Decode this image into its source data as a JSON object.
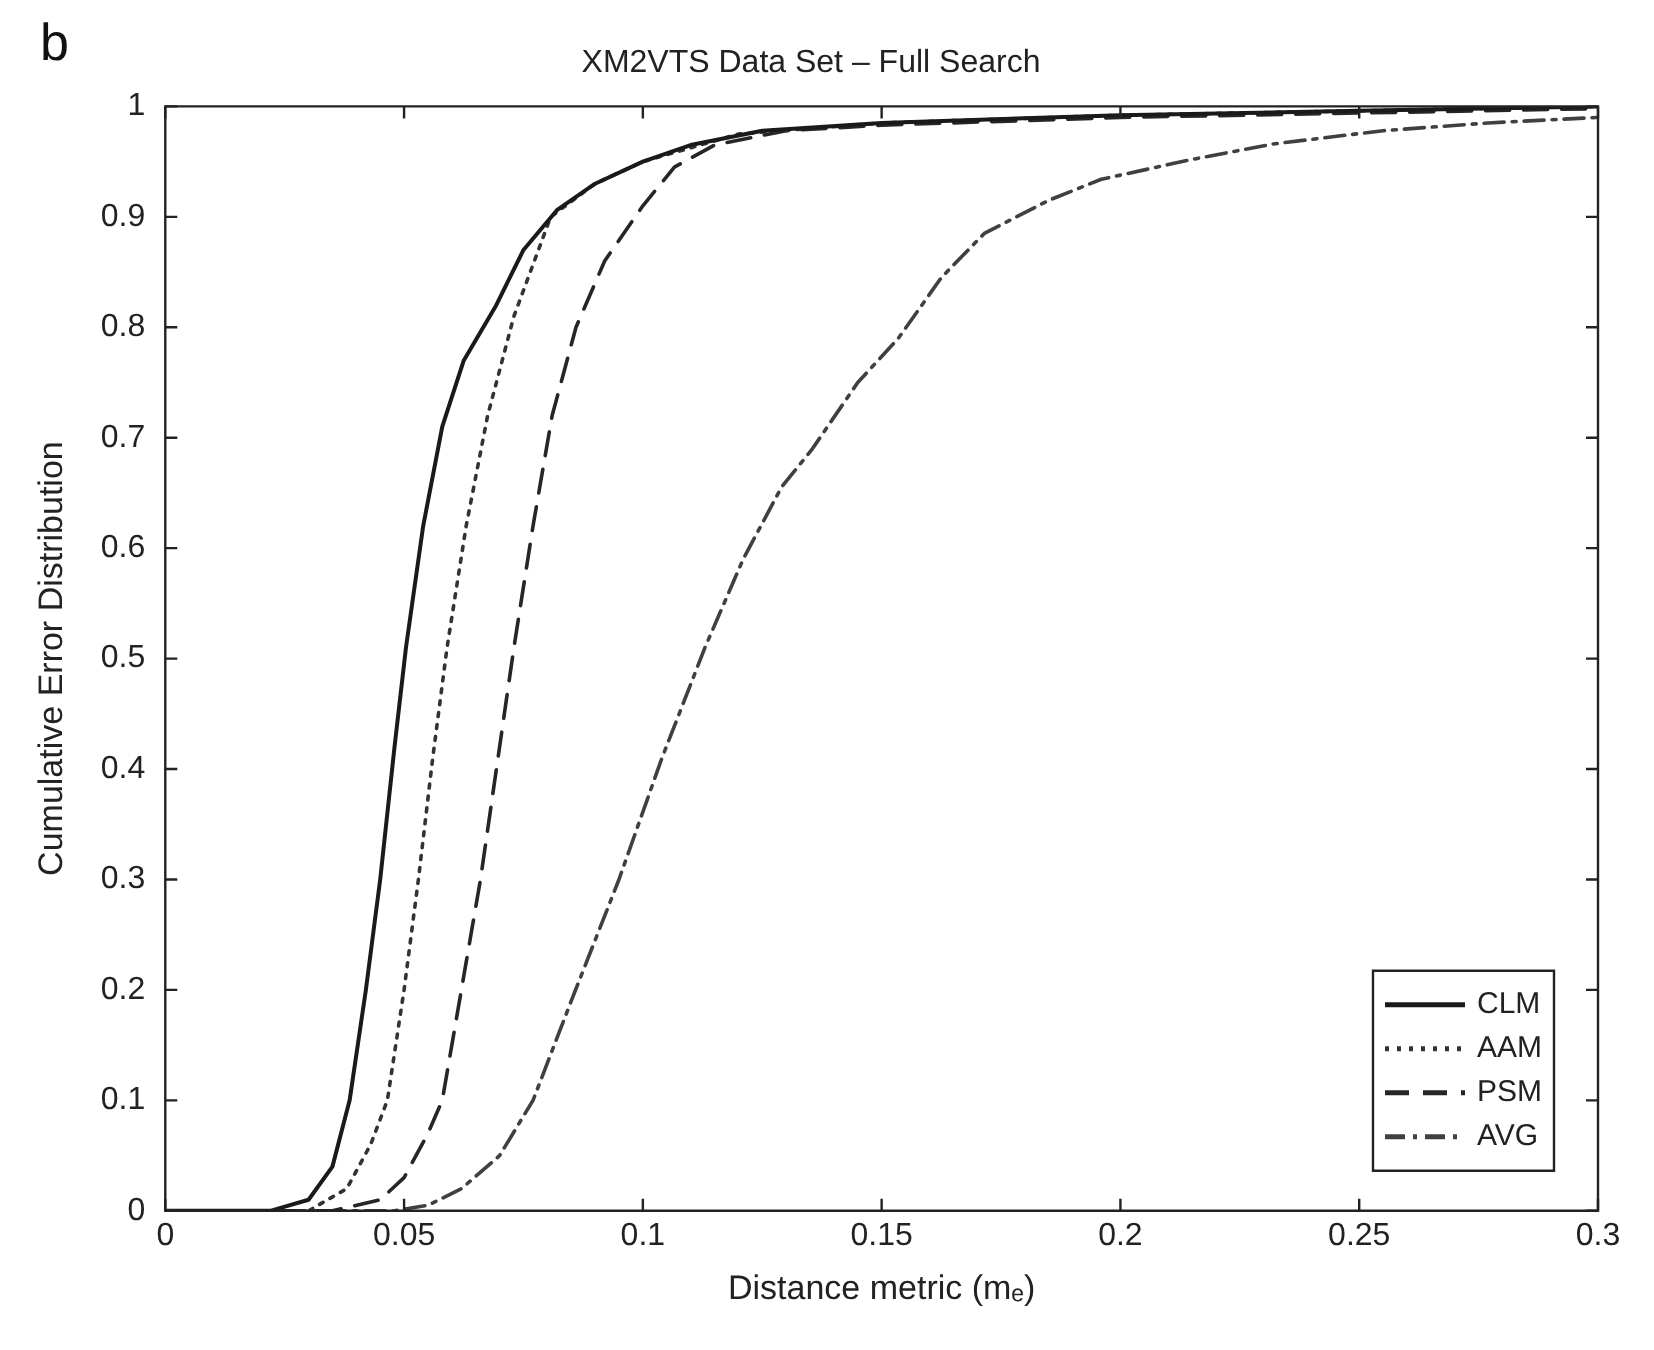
{
  "chart_data": {
    "type": "line",
    "title": "XM2VTS Data Set – Full Search",
    "xlabel": "Distance metric (mₑ)",
    "ylabel": "Cumulative Error Distribution",
    "annotations": [
      "b"
    ],
    "xlim": [
      0,
      0.3
    ],
    "xticks": [
      0,
      0.05,
      0.1,
      0.15,
      0.2,
      0.25,
      0.3
    ],
    "ylim": [
      0,
      1
    ],
    "yticks": [
      0,
      0.1,
      0.2,
      0.3,
      0.4,
      0.5,
      0.6,
      0.7,
      0.8,
      0.9,
      1
    ],
    "grid": false,
    "legend": "bottom right",
    "marker": "none",
    "series": [
      {
        "name": "CLM",
        "color": "#1a1a1a",
        "line_style": "solid",
        "x": [
          0,
          0.022,
          0.03,
          0.035,
          0.0386,
          0.042,
          0.045,
          0.048,
          0.0504,
          0.054,
          0.058,
          0.0625,
          0.0693,
          0.075,
          0.082,
          0.09,
          0.1,
          0.11,
          0.125,
          0.15,
          0.2,
          0.25,
          0.3
        ],
        "values": [
          0,
          0,
          0.01,
          0.04,
          0.1,
          0.2,
          0.3,
          0.42,
          0.51,
          0.62,
          0.71,
          0.77,
          0.82,
          0.87,
          0.906,
          0.93,
          0.95,
          0.965,
          0.978,
          0.985,
          0.992,
          0.996,
          1
        ]
      },
      {
        "name": "AAM",
        "color": "#333333",
        "line_style": "dotted",
        "x": [
          0,
          0.03,
          0.038,
          0.043,
          0.0465,
          0.05,
          0.053,
          0.056,
          0.059,
          0.063,
          0.0675,
          0.073,
          0.0807,
          0.09,
          0.1,
          0.12,
          0.15,
          0.2,
          0.3
        ],
        "values": [
          0,
          0,
          0.02,
          0.06,
          0.1,
          0.2,
          0.3,
          0.41,
          0.51,
          0.62,
          0.72,
          0.81,
          0.9,
          0.93,
          0.95,
          0.975,
          0.985,
          0.992,
          1
        ]
      },
      {
        "name": "PSM",
        "color": "#262626",
        "line_style": "dashed",
        "x": [
          0,
          0.035,
          0.045,
          0.05,
          0.055,
          0.058,
          0.062,
          0.066,
          0.07,
          0.073,
          0.077,
          0.081,
          0.086,
          0.092,
          0.1,
          0.1066,
          0.115,
          0.13,
          0.15,
          0.2,
          0.3
        ],
        "values": [
          0,
          0,
          0.01,
          0.03,
          0.07,
          0.1,
          0.2,
          0.3,
          0.42,
          0.51,
          0.62,
          0.72,
          0.8,
          0.86,
          0.91,
          0.945,
          0.965,
          0.978,
          0.983,
          0.99,
          0.998
        ]
      },
      {
        "name": "AVG",
        "color": "#404040",
        "line_style": "dashdot",
        "x": [
          0,
          0.048,
          0.055,
          0.062,
          0.07,
          0.077,
          0.085,
          0.095,
          0.104,
          0.113,
          0.121,
          0.129,
          0.1355,
          0.145,
          0.1535,
          0.1625,
          0.1715,
          0.185,
          0.196,
          0.215,
          0.232,
          0.255,
          0.277,
          0.3
        ],
        "values": [
          0,
          0,
          0.005,
          0.02,
          0.05,
          0.1,
          0.19,
          0.3,
          0.41,
          0.51,
          0.59,
          0.655,
          0.69,
          0.75,
          0.79,
          0.845,
          0.885,
          0.915,
          0.934,
          0.952,
          0.966,
          0.978,
          0.985,
          0.99
        ]
      }
    ]
  }
}
